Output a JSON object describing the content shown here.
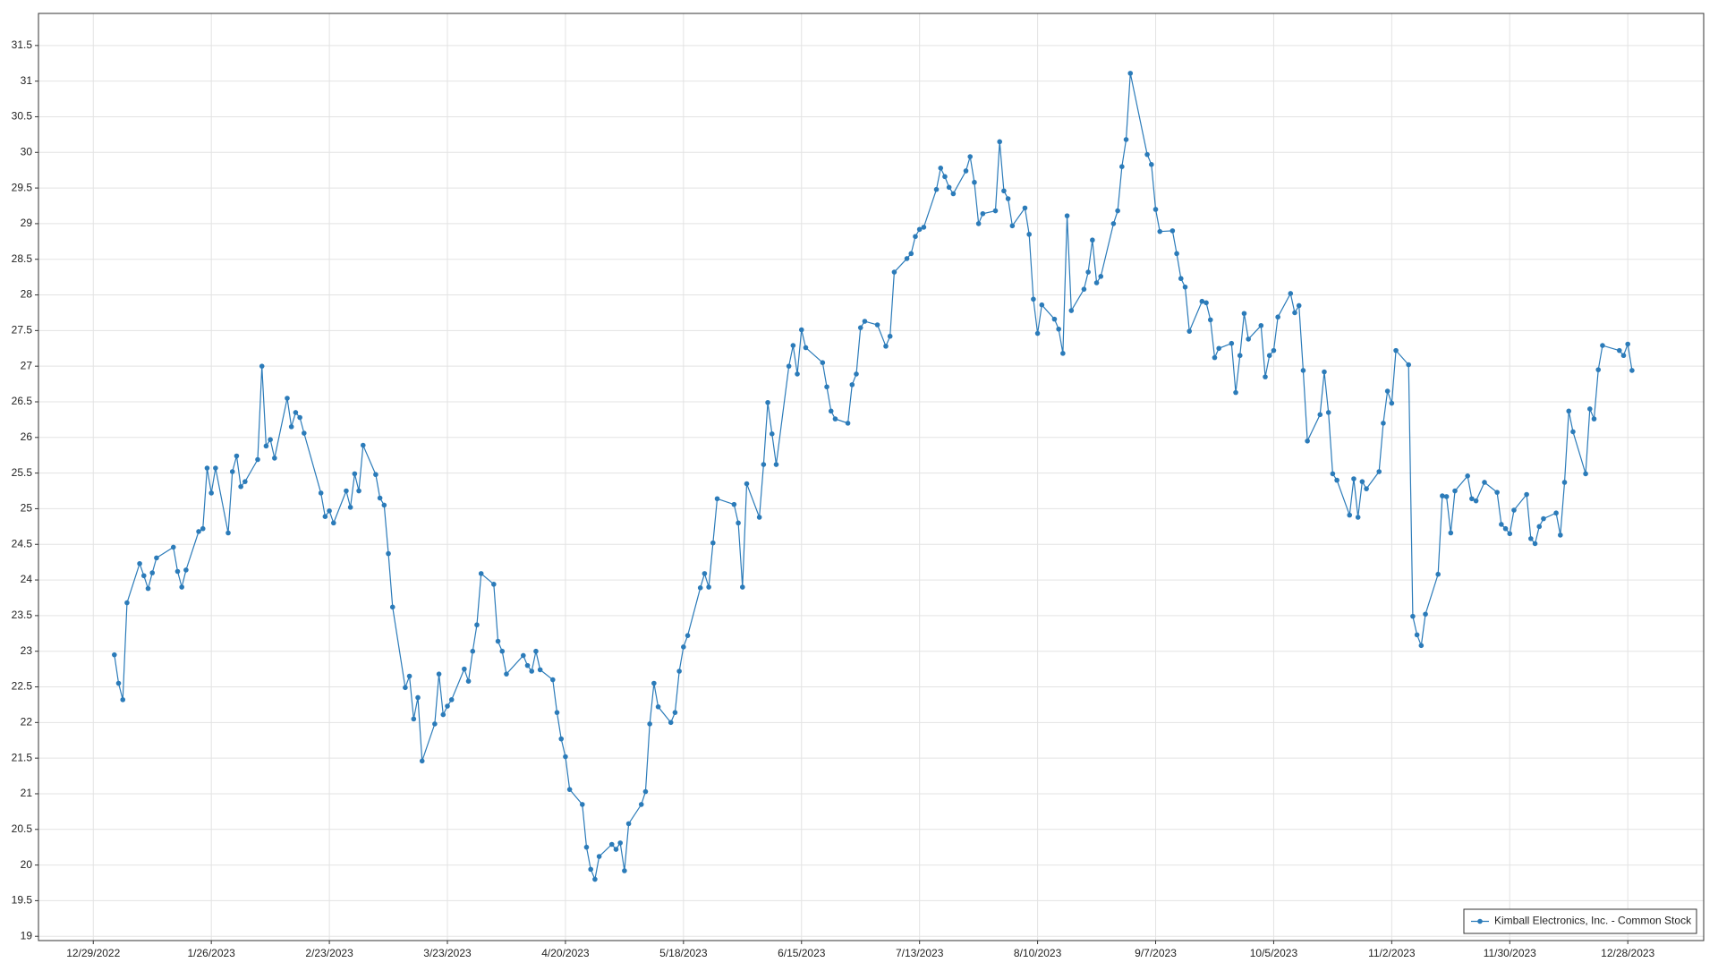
{
  "chart_data": {
    "type": "line",
    "grid": true,
    "legend": "bottom-right",
    "xlim": [
      "12/16/2022",
      "1/15/2024"
    ],
    "xticks": [
      "12/29/2022",
      "1/26/2023",
      "2/23/2023",
      "3/23/2023",
      "4/20/2023",
      "5/18/2023",
      "6/15/2023",
      "7/13/2023",
      "8/10/2023",
      "9/7/2023",
      "10/5/2023",
      "11/2/2023",
      "11/30/2023",
      "12/28/2023"
    ],
    "ylim": [
      18.94,
      31.95
    ],
    "yticks": [
      19,
      19.5,
      20,
      20.5,
      21,
      21.5,
      22,
      22.5,
      23,
      23.5,
      24,
      24.5,
      25,
      25.5,
      26,
      26.5,
      27,
      27.5,
      28,
      28.5,
      29,
      29.5,
      30,
      30.5,
      31,
      31.5
    ],
    "x": [
      "1/3/2023",
      "1/4/2023",
      "1/5/2023",
      "1/6/2023",
      "1/9/2023",
      "1/10/2023",
      "1/11/2023",
      "1/12/2023",
      "1/13/2023",
      "1/17/2023",
      "1/18/2023",
      "1/19/2023",
      "1/20/2023",
      "1/23/2023",
      "1/24/2023",
      "1/25/2023",
      "1/26/2023",
      "1/27/2023",
      "1/30/2023",
      "1/31/2023",
      "2/1/2023",
      "2/2/2023",
      "2/3/2023",
      "2/6/2023",
      "2/7/2023",
      "2/8/2023",
      "2/9/2023",
      "2/10/2023",
      "2/13/2023",
      "2/14/2023",
      "2/15/2023",
      "2/16/2023",
      "2/17/2023",
      "2/21/2023",
      "2/22/2023",
      "2/23/2023",
      "2/24/2023",
      "2/27/2023",
      "2/28/2023",
      "3/1/2023",
      "3/2/2023",
      "3/3/2023",
      "3/6/2023",
      "3/7/2023",
      "3/8/2023",
      "3/9/2023",
      "3/10/2023",
      "3/13/2023",
      "3/14/2023",
      "3/15/2023",
      "3/16/2023",
      "3/17/2023",
      "3/20/2023",
      "3/21/2023",
      "3/22/2023",
      "3/23/2023",
      "3/24/2023",
      "3/27/2023",
      "3/28/2023",
      "3/29/2023",
      "3/30/2023",
      "3/31/2023",
      "4/3/2023",
      "4/4/2023",
      "4/5/2023",
      "4/6/2023",
      "4/10/2023",
      "4/11/2023",
      "4/12/2023",
      "4/13/2023",
      "4/14/2023",
      "4/17/2023",
      "4/18/2023",
      "4/19/2023",
      "4/20/2023",
      "4/21/2023",
      "4/24/2023",
      "4/25/2023",
      "4/26/2023",
      "4/27/2023",
      "4/28/2023",
      "5/1/2023",
      "5/2/2023",
      "5/3/2023",
      "5/4/2023",
      "5/5/2023",
      "5/8/2023",
      "5/9/2023",
      "5/10/2023",
      "5/11/2023",
      "5/12/2023",
      "5/15/2023",
      "5/16/2023",
      "5/17/2023",
      "5/18/2023",
      "5/19/2023",
      "5/22/2023",
      "5/23/2023",
      "5/24/2023",
      "5/25/2023",
      "5/26/2023",
      "5/30/2023",
      "5/31/2023",
      "6/1/2023",
      "6/2/2023",
      "6/5/2023",
      "6/6/2023",
      "6/7/2023",
      "6/8/2023",
      "6/9/2023",
      "6/12/2023",
      "6/13/2023",
      "6/14/2023",
      "6/15/2023",
      "6/16/2023",
      "6/20/2023",
      "6/21/2023",
      "6/22/2023",
      "6/23/2023",
      "6/26/2023",
      "6/27/2023",
      "6/28/2023",
      "6/29/2023",
      "6/30/2023",
      "7/3/2023",
      "7/5/2023",
      "7/6/2023",
      "7/7/2023",
      "7/10/2023",
      "7/11/2023",
      "7/12/2023",
      "7/13/2023",
      "7/14/2023",
      "7/17/2023",
      "7/18/2023",
      "7/19/2023",
      "7/20/2023",
      "7/21/2023",
      "7/24/2023",
      "7/25/2023",
      "7/26/2023",
      "7/27/2023",
      "7/28/2023",
      "7/31/2023",
      "8/1/2023",
      "8/2/2023",
      "8/3/2023",
      "8/4/2023",
      "8/7/2023",
      "8/8/2023",
      "8/9/2023",
      "8/10/2023",
      "8/11/2023",
      "8/14/2023",
      "8/15/2023",
      "8/16/2023",
      "8/17/2023",
      "8/18/2023",
      "8/21/2023",
      "8/22/2023",
      "8/23/2023",
      "8/24/2023",
      "8/25/2023",
      "8/28/2023",
      "8/29/2023",
      "8/30/2023",
      "8/31/2023",
      "9/1/2023",
      "9/5/2023",
      "9/6/2023",
      "9/7/2023",
      "9/8/2023",
      "9/11/2023",
      "9/12/2023",
      "9/13/2023",
      "9/14/2023",
      "9/15/2023",
      "9/18/2023",
      "9/19/2023",
      "9/20/2023",
      "9/21/2023",
      "9/22/2023",
      "9/25/2023",
      "9/26/2023",
      "9/27/2023",
      "9/28/2023",
      "9/29/2023",
      "10/2/2023",
      "10/3/2023",
      "10/4/2023",
      "10/5/2023",
      "10/6/2023",
      "10/9/2023",
      "10/10/2023",
      "10/11/2023",
      "10/12/2023",
      "10/13/2023",
      "10/16/2023",
      "10/17/2023",
      "10/18/2023",
      "10/19/2023",
      "10/20/2023",
      "10/23/2023",
      "10/24/2023",
      "10/25/2023",
      "10/26/2023",
      "10/27/2023",
      "10/30/2023",
      "10/31/2023",
      "11/1/2023",
      "11/2/2023",
      "11/3/2023",
      "11/6/2023",
      "11/7/2023",
      "11/8/2023",
      "11/9/2023",
      "11/10/2023",
      "11/13/2023",
      "11/14/2023",
      "11/15/2023",
      "11/16/2023",
      "11/17/2023",
      "11/20/2023",
      "11/21/2023",
      "11/22/2023",
      "11/24/2023",
      "11/27/2023",
      "11/28/2023",
      "11/29/2023",
      "11/30/2023",
      "12/1/2023",
      "12/4/2023",
      "12/5/2023",
      "12/6/2023",
      "12/7/2023",
      "12/8/2023",
      "12/11/2023",
      "12/12/2023",
      "12/13/2023",
      "12/14/2023",
      "12/15/2023",
      "12/18/2023",
      "12/19/2023",
      "12/20/2023",
      "12/21/2023",
      "12/22/2023",
      "12/26/2023",
      "12/27/2023",
      "12/28/2023",
      "12/29/2023"
    ],
    "series": [
      {
        "name": "Kimball Electronics, Inc. - Common Stock",
        "color": "#2b7bb9",
        "values": [
          22.95,
          22.55,
          22.32,
          23.68,
          24.23,
          24.06,
          23.88,
          24.1,
          24.31,
          24.46,
          24.12,
          23.9,
          24.14,
          24.68,
          24.72,
          25.57,
          25.22,
          25.57,
          24.66,
          25.52,
          25.74,
          25.31,
          25.38,
          25.69,
          27.0,
          25.88,
          25.97,
          25.71,
          26.55,
          26.15,
          26.35,
          26.28,
          26.06,
          25.22,
          24.89,
          24.97,
          24.8,
          25.25,
          25.02,
          25.49,
          25.25,
          25.89,
          25.48,
          25.15,
          25.05,
          24.37,
          23.62,
          22.49,
          22.65,
          22.05,
          22.35,
          21.46,
          21.98,
          22.68,
          22.11,
          22.23,
          22.32,
          22.75,
          22.58,
          23.0,
          23.37,
          24.09,
          23.94,
          23.14,
          23.0,
          22.68,
          22.94,
          22.8,
          22.72,
          23.0,
          22.74,
          22.6,
          22.14,
          21.77,
          21.52,
          21.06,
          20.85,
          20.25,
          19.94,
          19.8,
          20.12,
          20.29,
          20.22,
          20.31,
          19.92,
          20.58,
          20.85,
          21.03,
          21.98,
          22.55,
          22.22,
          22.0,
          22.14,
          22.72,
          23.06,
          23.22,
          23.89,
          24.09,
          23.9,
          24.52,
          25.14,
          25.06,
          24.8,
          23.9,
          25.35,
          24.88,
          25.62,
          26.49,
          26.05,
          25.62,
          27.0,
          27.29,
          26.89,
          27.51,
          27.26,
          27.05,
          26.71,
          26.37,
          26.26,
          26.2,
          26.74,
          26.89,
          27.54,
          27.63,
          27.58,
          27.28,
          27.42,
          28.32,
          28.51,
          28.58,
          28.82,
          28.92,
          28.95,
          29.48,
          29.78,
          29.66,
          29.51,
          29.42,
          29.74,
          29.94,
          29.58,
          29.0,
          29.14,
          29.18,
          30.15,
          29.46,
          29.35,
          28.97,
          29.22,
          28.85,
          27.94,
          27.46,
          27.86,
          27.66,
          27.52,
          27.18,
          29.11,
          27.78,
          28.08,
          28.32,
          28.77,
          28.17,
          28.26,
          29.0,
          29.18,
          29.8,
          30.18,
          31.11,
          29.97,
          29.83,
          29.2,
          28.89,
          28.9,
          28.58,
          28.23,
          28.11,
          27.49,
          27.91,
          27.89,
          27.65,
          27.12,
          27.25,
          27.32,
          26.63,
          27.15,
          27.74,
          27.38,
          27.57,
          26.85,
          27.15,
          27.22,
          27.69,
          28.02,
          27.75,
          27.85,
          26.94,
          25.95,
          26.32,
          26.92,
          26.35,
          25.49,
          25.4,
          24.91,
          25.42,
          24.88,
          25.38,
          25.28,
          25.52,
          26.2,
          26.65,
          26.48,
          27.22,
          27.02,
          23.49,
          23.23,
          23.08,
          23.52,
          24.08,
          25.18,
          25.17,
          24.66,
          25.25,
          25.46,
          25.14,
          25.11,
          25.37,
          25.23,
          24.78,
          24.72,
          24.65,
          24.98,
          25.2,
          24.58,
          24.51,
          24.75,
          24.86,
          24.94,
          24.63,
          25.37,
          26.37,
          26.08,
          25.49,
          26.4,
          26.26,
          26.95,
          27.29,
          27.22,
          27.15,
          27.31,
          26.94
        ]
      }
    ]
  }
}
